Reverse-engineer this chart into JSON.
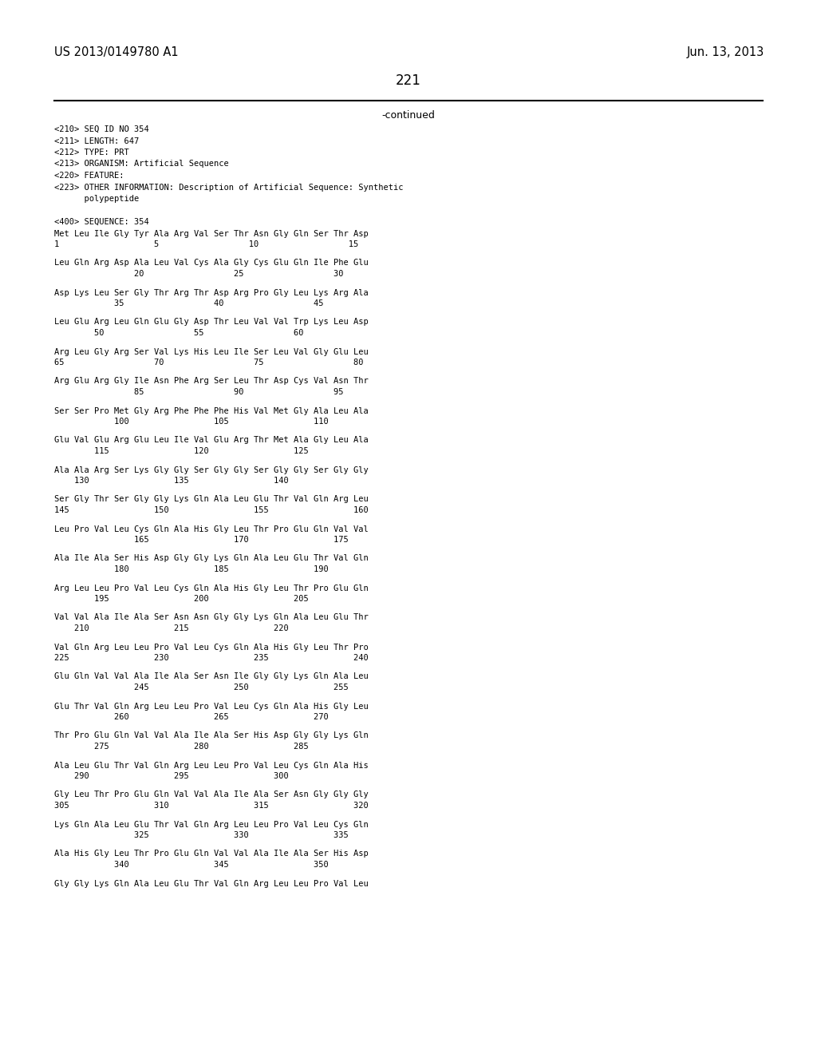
{
  "left_header": "US 2013/0149780 A1",
  "right_header": "Jun. 13, 2013",
  "page_number": "221",
  "continued_label": "-continued",
  "background_color": "#ffffff",
  "text_color": "#000000",
  "metadata_lines": [
    "<210> SEQ ID NO 354",
    "<211> LENGTH: 647",
    "<212> TYPE: PRT",
    "<213> ORGANISM: Artificial Sequence",
    "<220> FEATURE:",
    "<223> OTHER INFORMATION: Description of Artificial Sequence: Synthetic",
    "      polypeptide",
    "",
    "<400> SEQUENCE: 354"
  ],
  "sequence_blocks": [
    {
      "seq_line": "Met Leu Ile Gly Tyr Ala Arg Val Ser Thr Asn Gly Gln Ser Thr Asp",
      "num_line": "1                   5                  10                  15"
    },
    {
      "seq_line": "Leu Gln Arg Asp Ala Leu Val Cys Ala Gly Cys Glu Gln Ile Phe Glu",
      "num_line": "                20                  25                  30"
    },
    {
      "seq_line": "Asp Lys Leu Ser Gly Thr Arg Thr Asp Arg Pro Gly Leu Lys Arg Ala",
      "num_line": "            35                  40                  45"
    },
    {
      "seq_line": "Leu Glu Arg Leu Gln Glu Gly Asp Thr Leu Val Val Trp Lys Leu Asp",
      "num_line": "        50                  55                  60"
    },
    {
      "seq_line": "Arg Leu Gly Arg Ser Val Lys His Leu Ile Ser Leu Val Gly Glu Leu",
      "num_line": "65                  70                  75                  80"
    },
    {
      "seq_line": "Arg Glu Arg Gly Ile Asn Phe Arg Ser Leu Thr Asp Cys Val Asn Thr",
      "num_line": "                85                  90                  95"
    },
    {
      "seq_line": "Ser Ser Pro Met Gly Arg Phe Phe Phe His Val Met Gly Ala Leu Ala",
      "num_line": "            100                 105                 110"
    },
    {
      "seq_line": "Glu Val Glu Arg Glu Leu Ile Val Glu Arg Thr Met Ala Gly Leu Ala",
      "num_line": "        115                 120                 125"
    },
    {
      "seq_line": "Ala Ala Arg Ser Lys Gly Gly Ser Gly Gly Ser Gly Gly Ser Gly Gly",
      "num_line": "    130                 135                 140"
    },
    {
      "seq_line": "Ser Gly Thr Ser Gly Gly Lys Gln Ala Leu Glu Thr Val Gln Arg Leu",
      "num_line": "145                 150                 155                 160"
    },
    {
      "seq_line": "Leu Pro Val Leu Cys Gln Ala His Gly Leu Thr Pro Glu Gln Val Val",
      "num_line": "                165                 170                 175"
    },
    {
      "seq_line": "Ala Ile Ala Ser His Asp Gly Gly Lys Gln Ala Leu Glu Thr Val Gln",
      "num_line": "            180                 185                 190"
    },
    {
      "seq_line": "Arg Leu Leu Pro Val Leu Cys Gln Ala His Gly Leu Thr Pro Glu Gln",
      "num_line": "        195                 200                 205"
    },
    {
      "seq_line": "Val Val Ala Ile Ala Ser Asn Asn Gly Gly Lys Gln Ala Leu Glu Thr",
      "num_line": "    210                 215                 220"
    },
    {
      "seq_line": "Val Gln Arg Leu Leu Pro Val Leu Cys Gln Ala His Gly Leu Thr Pro",
      "num_line": "225                 230                 235                 240"
    },
    {
      "seq_line": "Glu Gln Val Val Ala Ile Ala Ser Asn Ile Gly Gly Lys Gln Ala Leu",
      "num_line": "                245                 250                 255"
    },
    {
      "seq_line": "Glu Thr Val Gln Arg Leu Leu Pro Val Leu Cys Gln Ala His Gly Leu",
      "num_line": "            260                 265                 270"
    },
    {
      "seq_line": "Thr Pro Glu Gln Val Val Ala Ile Ala Ser His Asp Gly Gly Lys Gln",
      "num_line": "        275                 280                 285"
    },
    {
      "seq_line": "Ala Leu Glu Thr Val Gln Arg Leu Leu Pro Val Leu Cys Gln Ala His",
      "num_line": "    290                 295                 300"
    },
    {
      "seq_line": "Gly Leu Thr Pro Glu Gln Val Val Ala Ile Ala Ser Asn Gly Gly Gly",
      "num_line": "305                 310                 315                 320"
    },
    {
      "seq_line": "Lys Gln Ala Leu Glu Thr Val Gln Arg Leu Leu Pro Val Leu Cys Gln",
      "num_line": "                325                 330                 335"
    },
    {
      "seq_line": "Ala His Gly Leu Thr Pro Glu Gln Val Val Ala Ile Ala Ser His Asp",
      "num_line": "            340                 345                 350"
    },
    {
      "seq_line": "Gly Gly Lys Gln Ala Leu Glu Thr Val Gln Arg Leu Leu Pro Val Leu"
    }
  ]
}
